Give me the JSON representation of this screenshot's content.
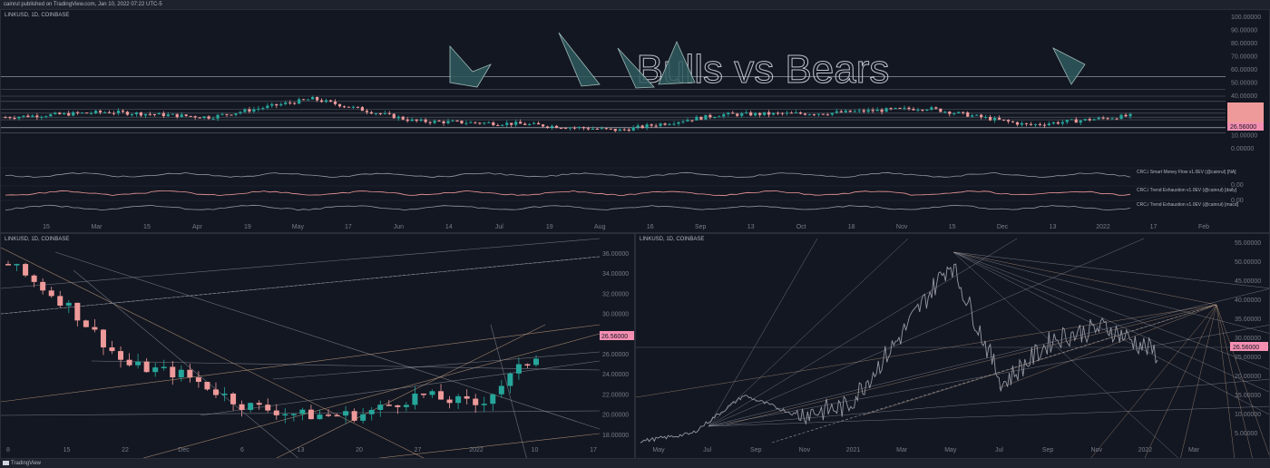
{
  "header": {
    "publisher": "cainrul published on TradingView.com, Jan 10, 2022 07:22 UTC-5"
  },
  "footer": {
    "brand": "TradingView"
  },
  "colors": {
    "bg": "#131722",
    "up": "#26a69a",
    "down": "#ef9a9a",
    "grid": "#2a2e39",
    "text": "#787b86",
    "line": "#d1d4dc",
    "fib": "#d8b08a",
    "price_tag": "#f48fb1"
  },
  "panels": {
    "top": {
      "title": "LINKUSD, 1D, COINBASE",
      "overlay_text": "Bulls vs Bears",
      "price_tag": "26.56000",
      "y_ticks": [
        "100.00000",
        "90.00000",
        "80.00000",
        "70.00000",
        "60.00000",
        "50.00000",
        "40.00000",
        "30.00000",
        "20.00000",
        "10.00000",
        "0.00000",
        "0.00",
        "0.00"
      ],
      "x_ticks": [
        "15",
        "Mar",
        "15",
        "Apr",
        "19",
        "May",
        "17",
        "Jun",
        "14",
        "Jul",
        "19",
        "Aug",
        "16",
        "Sep",
        "13",
        "Oct",
        "18",
        "Nov",
        "15",
        "Dec",
        "13",
        "2022",
        "17",
        "Feb"
      ],
      "indicators": [
        "CRC.i Smart Money Flow v1.0EV (@cainrul) [NA]",
        "CRC.i Trend Exhaustion v1.0EV (@cainrul) [daily]",
        "CRC.i Trend Exhaustion v1.0EV (@cainrul) [macd]"
      ]
    },
    "left": {
      "title": "LINKUSD, 1D, COINBASE",
      "price_tag": "26.56000",
      "y_ticks": [
        "36.00000",
        "34.00000",
        "32.00000",
        "30.00000",
        "28.00000",
        "26.00000",
        "24.00000",
        "22.00000",
        "20.00000",
        "18.00000"
      ],
      "x_ticks": [
        "8",
        "15",
        "22",
        "Dec",
        "6",
        "13",
        "20",
        "27",
        "2022",
        "10",
        "17"
      ]
    },
    "right": {
      "title": "LINKUSD, 1D, COINBASE",
      "price_tag": "26.56000",
      "y_ticks": [
        "55.00000",
        "50.00000",
        "45.00000",
        "40.00000",
        "35.00000",
        "30.00000",
        "25.00000",
        "20.00000",
        "15.00000",
        "10.00000",
        "5.00000"
      ],
      "x_ticks": [
        "May",
        "Jul",
        "Sep",
        "Nov",
        "2021",
        "Mar",
        "May",
        "Jul",
        "Sep",
        "Nov",
        "2022",
        "Mar"
      ]
    }
  },
  "chart_data": [
    {
      "type": "line",
      "title": "LINKUSD, 1D, COINBASE",
      "x": [
        "Feb",
        "Mar",
        "Apr",
        "May",
        "Jun",
        "Jul",
        "Aug",
        "Sep",
        "Oct",
        "Nov",
        "Dec",
        "Jan"
      ],
      "series": [
        {
          "values": [
            24,
            28,
            24,
            38,
            21,
            19,
            14,
            26,
            27,
            31,
            18,
            25
          ]
        }
      ],
      "ylim": [
        0,
        100
      ]
    },
    {
      "type": "line",
      "title": "LINKUSD, 1D, COINBASE",
      "x": [
        "8",
        "15",
        "22",
        "Dec",
        "6",
        "13",
        "20",
        "27",
        "2022",
        "10"
      ],
      "series": [
        {
          "values": [
            35,
            31,
            25,
            24,
            21,
            20,
            20,
            22,
            21,
            26
          ]
        }
      ],
      "ylim": [
        17,
        36
      ]
    },
    {
      "type": "line",
      "title": "LINKUSD, 1D, COINBASE",
      "x": [
        "May",
        "Jul",
        "Sep",
        "Nov",
        "2021",
        "Mar",
        "May",
        "Jul",
        "Sep",
        "Nov",
        "2022"
      ],
      "series": [
        {
          "values": [
            3,
            5,
            15,
            10,
            12,
            30,
            50,
            18,
            30,
            33,
            26
          ]
        }
      ],
      "ylim": [
        2,
        57
      ]
    }
  ]
}
